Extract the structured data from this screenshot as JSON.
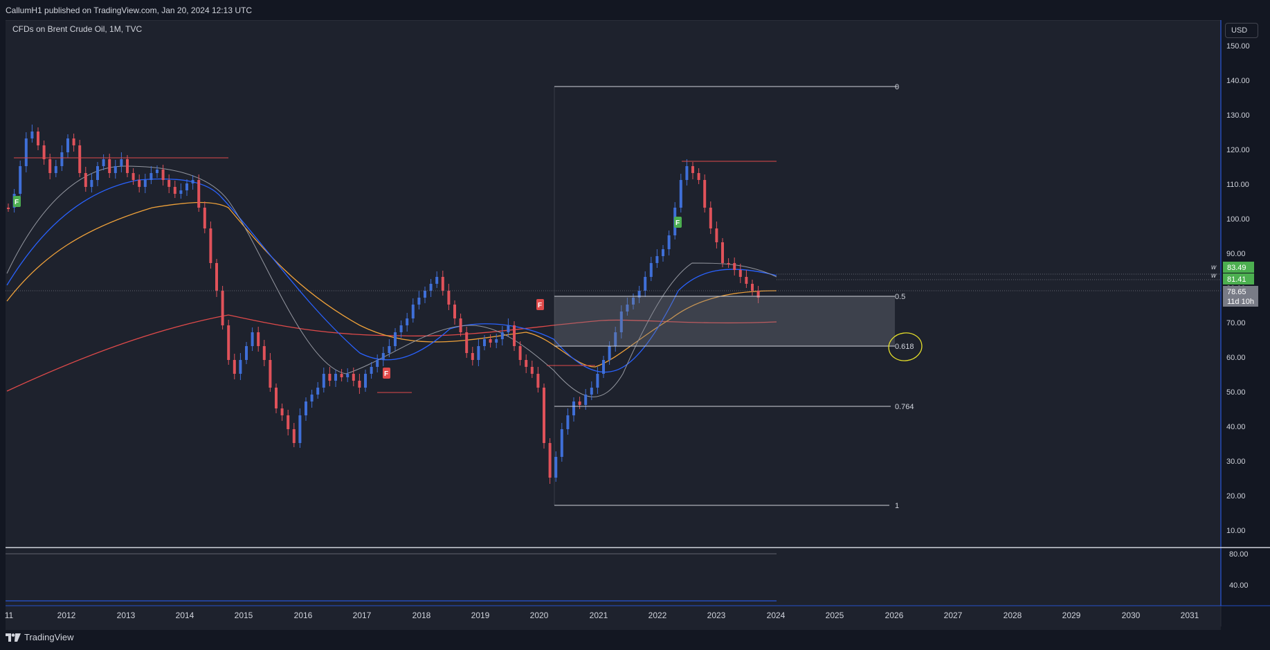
{
  "header": {
    "publish_text": "CallumH1 published on TradingView.com, Jan 20, 2024 12:13 UTC"
  },
  "chart": {
    "symbol_title": "CFDs on Brent Crude Oil, 1M, TVC",
    "currency_button": "USD",
    "price_axis": [
      "150.00",
      "140.00",
      "130.00",
      "120.00",
      "110.00",
      "100.00",
      "90.00",
      "80.00",
      "70.00",
      "60.00",
      "50.00",
      "40.00",
      "30.00",
      "20.00",
      "10.00"
    ],
    "sub_axis": [
      "80.00",
      "40.00"
    ],
    "time_axis": [
      "11",
      "2012",
      "2013",
      "2014",
      "2015",
      "2016",
      "2017",
      "2018",
      "2019",
      "2020",
      "2021",
      "2022",
      "2023",
      "2024",
      "2025",
      "2026",
      "2027",
      "2028",
      "2029",
      "2030",
      "2031"
    ],
    "price_badges": [
      {
        "marker": "w",
        "value": "83.49",
        "color": "#4caf50"
      },
      {
        "marker": "w",
        "value": "81.41",
        "color": "#4caf50"
      }
    ],
    "last_price": {
      "value": "78.65",
      "countdown": "11d 10h",
      "color": "#787b86"
    },
    "fib_levels": [
      "0",
      "0.5",
      "0.618",
      "0.764",
      "1"
    ],
    "flags": [
      "F",
      "F",
      "F",
      "F"
    ],
    "colors": {
      "up_candle": "#3f6fd8",
      "down_candle": "#e0525a",
      "ma_fast": "#2962ff",
      "ma_mid": "#f0a23a",
      "ma_slow": "#e04a4a",
      "highlight_circle": "#e6e02a"
    }
  },
  "footer": {
    "logo_text": "TradingView"
  }
}
